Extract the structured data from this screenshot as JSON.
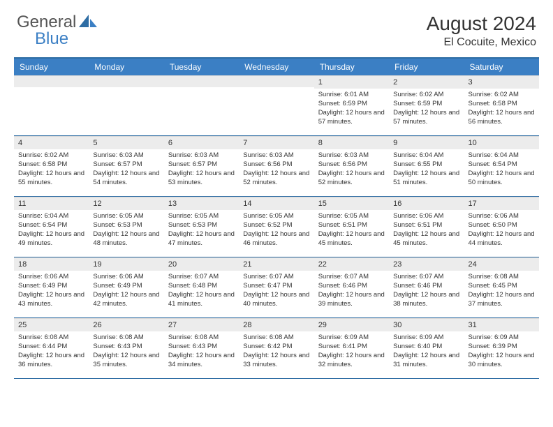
{
  "logo": {
    "general": "General",
    "blue": "Blue"
  },
  "title": "August 2024",
  "location": "El Cocuite, Mexico",
  "colors": {
    "header_bg": "#3b7fc4",
    "header_border": "#2e6da4",
    "daynum_bg": "#ececec",
    "text": "#333333"
  },
  "day_headers": [
    "Sunday",
    "Monday",
    "Tuesday",
    "Wednesday",
    "Thursday",
    "Friday",
    "Saturday"
  ],
  "weeks": [
    [
      {
        "n": "",
        "sunrise": "",
        "sunset": "",
        "daylight": ""
      },
      {
        "n": "",
        "sunrise": "",
        "sunset": "",
        "daylight": ""
      },
      {
        "n": "",
        "sunrise": "",
        "sunset": "",
        "daylight": ""
      },
      {
        "n": "",
        "sunrise": "",
        "sunset": "",
        "daylight": ""
      },
      {
        "n": "1",
        "sunrise": "Sunrise: 6:01 AM",
        "sunset": "Sunset: 6:59 PM",
        "daylight": "Daylight: 12 hours and 57 minutes."
      },
      {
        "n": "2",
        "sunrise": "Sunrise: 6:02 AM",
        "sunset": "Sunset: 6:59 PM",
        "daylight": "Daylight: 12 hours and 57 minutes."
      },
      {
        "n": "3",
        "sunrise": "Sunrise: 6:02 AM",
        "sunset": "Sunset: 6:58 PM",
        "daylight": "Daylight: 12 hours and 56 minutes."
      }
    ],
    [
      {
        "n": "4",
        "sunrise": "Sunrise: 6:02 AM",
        "sunset": "Sunset: 6:58 PM",
        "daylight": "Daylight: 12 hours and 55 minutes."
      },
      {
        "n": "5",
        "sunrise": "Sunrise: 6:03 AM",
        "sunset": "Sunset: 6:57 PM",
        "daylight": "Daylight: 12 hours and 54 minutes."
      },
      {
        "n": "6",
        "sunrise": "Sunrise: 6:03 AM",
        "sunset": "Sunset: 6:57 PM",
        "daylight": "Daylight: 12 hours and 53 minutes."
      },
      {
        "n": "7",
        "sunrise": "Sunrise: 6:03 AM",
        "sunset": "Sunset: 6:56 PM",
        "daylight": "Daylight: 12 hours and 52 minutes."
      },
      {
        "n": "8",
        "sunrise": "Sunrise: 6:03 AM",
        "sunset": "Sunset: 6:56 PM",
        "daylight": "Daylight: 12 hours and 52 minutes."
      },
      {
        "n": "9",
        "sunrise": "Sunrise: 6:04 AM",
        "sunset": "Sunset: 6:55 PM",
        "daylight": "Daylight: 12 hours and 51 minutes."
      },
      {
        "n": "10",
        "sunrise": "Sunrise: 6:04 AM",
        "sunset": "Sunset: 6:54 PM",
        "daylight": "Daylight: 12 hours and 50 minutes."
      }
    ],
    [
      {
        "n": "11",
        "sunrise": "Sunrise: 6:04 AM",
        "sunset": "Sunset: 6:54 PM",
        "daylight": "Daylight: 12 hours and 49 minutes."
      },
      {
        "n": "12",
        "sunrise": "Sunrise: 6:05 AM",
        "sunset": "Sunset: 6:53 PM",
        "daylight": "Daylight: 12 hours and 48 minutes."
      },
      {
        "n": "13",
        "sunrise": "Sunrise: 6:05 AM",
        "sunset": "Sunset: 6:53 PM",
        "daylight": "Daylight: 12 hours and 47 minutes."
      },
      {
        "n": "14",
        "sunrise": "Sunrise: 6:05 AM",
        "sunset": "Sunset: 6:52 PM",
        "daylight": "Daylight: 12 hours and 46 minutes."
      },
      {
        "n": "15",
        "sunrise": "Sunrise: 6:05 AM",
        "sunset": "Sunset: 6:51 PM",
        "daylight": "Daylight: 12 hours and 45 minutes."
      },
      {
        "n": "16",
        "sunrise": "Sunrise: 6:06 AM",
        "sunset": "Sunset: 6:51 PM",
        "daylight": "Daylight: 12 hours and 45 minutes."
      },
      {
        "n": "17",
        "sunrise": "Sunrise: 6:06 AM",
        "sunset": "Sunset: 6:50 PM",
        "daylight": "Daylight: 12 hours and 44 minutes."
      }
    ],
    [
      {
        "n": "18",
        "sunrise": "Sunrise: 6:06 AM",
        "sunset": "Sunset: 6:49 PM",
        "daylight": "Daylight: 12 hours and 43 minutes."
      },
      {
        "n": "19",
        "sunrise": "Sunrise: 6:06 AM",
        "sunset": "Sunset: 6:49 PM",
        "daylight": "Daylight: 12 hours and 42 minutes."
      },
      {
        "n": "20",
        "sunrise": "Sunrise: 6:07 AM",
        "sunset": "Sunset: 6:48 PM",
        "daylight": "Daylight: 12 hours and 41 minutes."
      },
      {
        "n": "21",
        "sunrise": "Sunrise: 6:07 AM",
        "sunset": "Sunset: 6:47 PM",
        "daylight": "Daylight: 12 hours and 40 minutes."
      },
      {
        "n": "22",
        "sunrise": "Sunrise: 6:07 AM",
        "sunset": "Sunset: 6:46 PM",
        "daylight": "Daylight: 12 hours and 39 minutes."
      },
      {
        "n": "23",
        "sunrise": "Sunrise: 6:07 AM",
        "sunset": "Sunset: 6:46 PM",
        "daylight": "Daylight: 12 hours and 38 minutes."
      },
      {
        "n": "24",
        "sunrise": "Sunrise: 6:08 AM",
        "sunset": "Sunset: 6:45 PM",
        "daylight": "Daylight: 12 hours and 37 minutes."
      }
    ],
    [
      {
        "n": "25",
        "sunrise": "Sunrise: 6:08 AM",
        "sunset": "Sunset: 6:44 PM",
        "daylight": "Daylight: 12 hours and 36 minutes."
      },
      {
        "n": "26",
        "sunrise": "Sunrise: 6:08 AM",
        "sunset": "Sunset: 6:43 PM",
        "daylight": "Daylight: 12 hours and 35 minutes."
      },
      {
        "n": "27",
        "sunrise": "Sunrise: 6:08 AM",
        "sunset": "Sunset: 6:43 PM",
        "daylight": "Daylight: 12 hours and 34 minutes."
      },
      {
        "n": "28",
        "sunrise": "Sunrise: 6:08 AM",
        "sunset": "Sunset: 6:42 PM",
        "daylight": "Daylight: 12 hours and 33 minutes."
      },
      {
        "n": "29",
        "sunrise": "Sunrise: 6:09 AM",
        "sunset": "Sunset: 6:41 PM",
        "daylight": "Daylight: 12 hours and 32 minutes."
      },
      {
        "n": "30",
        "sunrise": "Sunrise: 6:09 AM",
        "sunset": "Sunset: 6:40 PM",
        "daylight": "Daylight: 12 hours and 31 minutes."
      },
      {
        "n": "31",
        "sunrise": "Sunrise: 6:09 AM",
        "sunset": "Sunset: 6:39 PM",
        "daylight": "Daylight: 12 hours and 30 minutes."
      }
    ]
  ]
}
